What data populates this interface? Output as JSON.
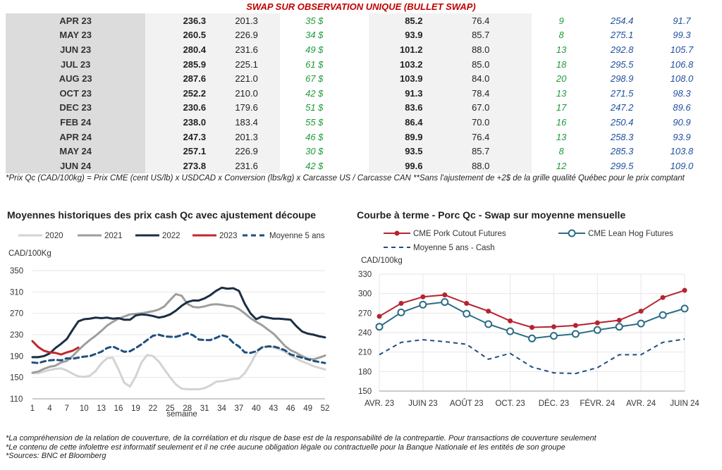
{
  "title": "SWAP SUR OBSERVATION UNIQUE (BULLET SWAP)",
  "table": {
    "rows": [
      {
        "month": "APR 23",
        "v1": "236.3",
        "v2": "201.3",
        "v3": "35 $",
        "v4": "85.2",
        "v5": "76.4",
        "v6": "9",
        "v7": "254.4",
        "v8": "91.7"
      },
      {
        "month": "MAY 23",
        "v1": "260.5",
        "v2": "226.9",
        "v3": "34 $",
        "v4": "93.9",
        "v5": "85.7",
        "v6": "8",
        "v7": "275.1",
        "v8": "99.3"
      },
      {
        "month": "JUN 23",
        "v1": "280.4",
        "v2": "231.6",
        "v3": "49 $",
        "v4": "101.2",
        "v5": "88.0",
        "v6": "13",
        "v7": "292.8",
        "v8": "105.7"
      },
      {
        "month": "JUL 23",
        "v1": "285.9",
        "v2": "225.1",
        "v3": "61 $",
        "v4": "103.2",
        "v5": "85.0",
        "v6": "18",
        "v7": "295.5",
        "v8": "106.8"
      },
      {
        "month": "AUG 23",
        "v1": "287.6",
        "v2": "221.0",
        "v3": "67 $",
        "v4": "103.9",
        "v5": "84.0",
        "v6": "20",
        "v7": "298.9",
        "v8": "108.0"
      },
      {
        "month": "OCT 23",
        "v1": "252.2",
        "v2": "210.0",
        "v3": "42 $",
        "v4": "91.3",
        "v5": "78.4",
        "v6": "13",
        "v7": "271.5",
        "v8": "98.3"
      },
      {
        "month": "DEC 23",
        "v1": "230.6",
        "v2": "179.6",
        "v3": "51 $",
        "v4": "83.6",
        "v5": "67.0",
        "v6": "17",
        "v7": "247.2",
        "v8": "89.6"
      },
      {
        "month": "FEB 24",
        "v1": "238.0",
        "v2": "183.4",
        "v3": "55 $",
        "v4": "86.4",
        "v5": "70.0",
        "v6": "16",
        "v7": "250.4",
        "v8": "90.9"
      },
      {
        "month": "APR 24",
        "v1": "247.3",
        "v2": "201.3",
        "v3": "46 $",
        "v4": "89.9",
        "v5": "76.4",
        "v6": "13",
        "v7": "258.3",
        "v8": "93.9"
      },
      {
        "month": "MAY 24",
        "v1": "257.1",
        "v2": "226.9",
        "v3": "30 $",
        "v4": "93.5",
        "v5": "85.7",
        "v6": "8",
        "v7": "285.3",
        "v8": "103.8"
      },
      {
        "month": "JUN 24",
        "v1": "273.8",
        "v2": "231.6",
        "v3": "42 $",
        "v4": "99.6",
        "v5": "88.0",
        "v6": "12",
        "v7": "299.5",
        "v8": "109.0"
      }
    ]
  },
  "footnote": "*Prix Qc (CAD/100kg) = Prix CME (cent US/lb) x USDCAD x Conversion (lbs/kg) x Carcasse US / Carcasse CAN **Sans l'ajustement de +2$ de la grille qualité Québec pour le prix comptant",
  "notes": [
    "*La compréhension de la relation de couverture, de la corrélation et du risque de base est de la responsabilité de la contrepartie. Pour transactions de couverture seulement",
    "*Le contenu de cette infolettre est informatif seulement et il ne crée aucune obligation légale ou contractuelle pour la Banque Nationale et les entités de son groupe",
    "*Sources: BNC et Bloomberg"
  ],
  "colors": {
    "red": "#c00000",
    "green": "#1e9b3a",
    "blue": "#1f4fa0"
  },
  "chart_data": [
    {
      "type": "line",
      "title": "Moyennes historiques des prix cash Qc avec ajustement découpe",
      "ylabel": "CAD/100Kg",
      "xlabel": "semaine",
      "ylim": [
        110,
        350
      ],
      "yticks": [
        110,
        150,
        190,
        230,
        270,
        310,
        350
      ],
      "xticks": [
        1,
        4,
        7,
        10,
        13,
        16,
        19,
        22,
        25,
        28,
        31,
        34,
        37,
        40,
        43,
        46,
        49,
        52
      ],
      "legend": "top",
      "series": [
        {
          "name": "2020",
          "color": "#d3d3d3",
          "x": [
            1,
            2,
            3,
            4,
            5,
            6,
            7,
            8,
            9,
            10,
            11,
            12,
            13,
            14,
            15,
            16,
            17,
            18,
            19,
            20,
            21,
            22,
            23,
            24,
            25,
            26,
            27,
            28,
            29,
            30,
            31,
            32,
            33,
            34,
            35,
            36,
            37,
            38,
            39,
            40,
            41,
            42,
            43,
            44,
            45,
            46,
            47,
            48,
            49,
            50,
            51,
            52
          ],
          "values": [
            158,
            158,
            161,
            164,
            166,
            167,
            163,
            157,
            152,
            151,
            153,
            162,
            176,
            186,
            187,
            165,
            140,
            133,
            152,
            178,
            192,
            190,
            180,
            165,
            150,
            137,
            129,
            128,
            128,
            128,
            130,
            135,
            142,
            143,
            145,
            147,
            148,
            158,
            175,
            195,
            207,
            208,
            206,
            203,
            198,
            191,
            185,
            180,
            176,
            171,
            168,
            165
          ]
        },
        {
          "name": "2021",
          "color": "#9e9e9e",
          "x": [
            1,
            2,
            3,
            4,
            5,
            6,
            7,
            8,
            9,
            10,
            11,
            12,
            13,
            14,
            15,
            16,
            17,
            18,
            19,
            20,
            21,
            22,
            23,
            24,
            25,
            26,
            27,
            28,
            29,
            30,
            31,
            32,
            33,
            34,
            35,
            36,
            37,
            38,
            39,
            40,
            41,
            42,
            43,
            44,
            45,
            46,
            47,
            48,
            49,
            50,
            51,
            52
          ],
          "values": [
            159,
            161,
            166,
            170,
            172,
            178,
            181,
            190,
            201,
            211,
            220,
            228,
            237,
            247,
            254,
            260,
            264,
            268,
            269,
            270,
            272,
            274,
            277,
            283,
            295,
            306,
            303,
            288,
            282,
            281,
            283,
            286,
            287,
            286,
            284,
            283,
            278,
            270,
            261,
            254,
            248,
            240,
            232,
            221,
            209,
            201,
            196,
            190,
            185,
            184,
            187,
            191
          ]
        },
        {
          "name": "2022",
          "color": "#1b2e45",
          "x": [
            1,
            2,
            3,
            4,
            5,
            6,
            7,
            8,
            9,
            10,
            11,
            12,
            13,
            14,
            15,
            16,
            17,
            18,
            19,
            20,
            21,
            22,
            23,
            24,
            25,
            26,
            27,
            28,
            29,
            30,
            31,
            32,
            33,
            34,
            35,
            36,
            37,
            38,
            39,
            40,
            41,
            42,
            43,
            44,
            45,
            46,
            47,
            48,
            49,
            50,
            51,
            52
          ],
          "values": [
            188,
            188,
            190,
            195,
            205,
            213,
            222,
            239,
            255,
            259,
            260,
            262,
            261,
            262,
            260,
            261,
            258,
            258,
            266,
            268,
            267,
            265,
            262,
            264,
            268,
            275,
            284,
            291,
            294,
            294,
            298,
            304,
            312,
            318,
            316,
            317,
            312,
            288,
            270,
            259,
            264,
            262,
            260,
            260,
            259,
            258,
            246,
            236,
            232,
            230,
            227,
            225
          ]
        },
        {
          "name": "2023",
          "color": "#c0282b",
          "x": [
            1,
            2,
            3,
            4,
            5,
            6,
            7,
            8,
            9
          ],
          "values": [
            218,
            207,
            200,
            197,
            196,
            193,
            197,
            200,
            206
          ]
        },
        {
          "name": "Moyenne 5 ans",
          "color": "#1f4f7d",
          "dashed": true,
          "x": [
            1,
            2,
            3,
            4,
            5,
            6,
            7,
            8,
            9,
            10,
            11,
            12,
            13,
            14,
            15,
            16,
            17,
            18,
            19,
            20,
            21,
            22,
            23,
            24,
            25,
            26,
            27,
            28,
            29,
            30,
            31,
            32,
            33,
            34,
            35,
            36,
            37,
            38,
            39,
            40,
            41,
            42,
            43,
            44,
            45,
            46,
            47,
            48,
            49,
            50,
            51,
            52
          ],
          "values": [
            178,
            177,
            180,
            182,
            183,
            182,
            186,
            185,
            187,
            189,
            190,
            194,
            198,
            205,
            208,
            203,
            198,
            199,
            205,
            212,
            220,
            228,
            230,
            227,
            226,
            226,
            229,
            233,
            229,
            221,
            220,
            220,
            224,
            229,
            226,
            215,
            208,
            197,
            196,
            199,
            206,
            208,
            208,
            205,
            201,
            193,
            190,
            187,
            184,
            181,
            179,
            177
          ]
        }
      ]
    },
    {
      "type": "line",
      "title": "Courbe à terme - Porc Qc - Swap sur moyenne mensuelle",
      "ylabel": "CAD/100kg",
      "ylim": [
        150,
        330
      ],
      "yticks": [
        150,
        180,
        210,
        240,
        270,
        300,
        330
      ],
      "categories": [
        "AVR. 23",
        "MAI 23",
        "JUIN 23",
        "JUIL. 23",
        "AOÛT 23",
        "SEPT. 23",
        "OCT. 23",
        "NOV. 23",
        "DÉC. 23",
        "JANV. 24",
        "FÉVR. 24",
        "MARS 24",
        "AVR. 24",
        "MAI 24",
        "JUIN 24"
      ],
      "tick_labels": [
        "AVR. 23",
        "JUIN 23",
        "AOÛT 23",
        "OCT. 23",
        "DÉC. 23",
        "FÉVR. 24",
        "AVR. 24",
        "JUIN 24"
      ],
      "legend": "top",
      "series": [
        {
          "name": "CME Pork Cutout Futures",
          "color": "#b5232f",
          "marker": "filled",
          "values": [
            265,
            285,
            295,
            298,
            285,
            273,
            258,
            248,
            249,
            251,
            255,
            259,
            273,
            294,
            305
          ]
        },
        {
          "name": "CME Lean Hog Futures",
          "color": "#2b6c84",
          "marker": "open",
          "values": [
            249,
            271,
            283,
            287,
            269,
            253,
            242,
            231,
            235,
            238,
            244,
            249,
            254,
            267,
            277
          ]
        },
        {
          "name": "Moyenne 5 ans - Cash",
          "color": "#1f4f7d",
          "dashed": true,
          "values": [
            206,
            225,
            229,
            226,
            222,
            199,
            208,
            187,
            178,
            177,
            186,
            206,
            206,
            225,
            230
          ]
        }
      ]
    }
  ]
}
